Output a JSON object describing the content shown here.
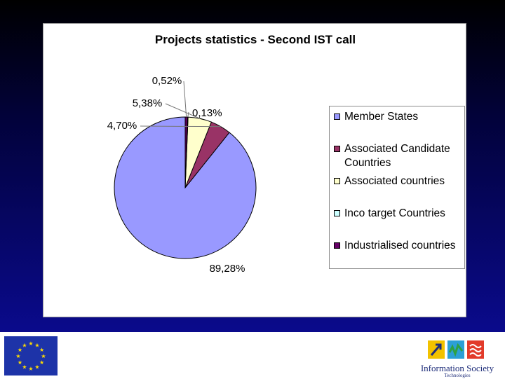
{
  "chart_data": {
    "type": "pie",
    "title": "Projects statistics - Second IST call",
    "categories": [
      "Member States",
      "Associated Candidate Countries",
      "Associated countries",
      "Inco target Countries",
      "Industrialised countries"
    ],
    "values": [
      89.28,
      4.7,
      5.38,
      0.13,
      0.52
    ],
    "data_labels": [
      "89,28%",
      "4,70%",
      "5,38%",
      "0,13%",
      "0,52%"
    ],
    "colors": [
      "#9999ff",
      "#993366",
      "#ffffcc",
      "#ccffff",
      "#660066"
    ],
    "legend": "right",
    "start_angle_deg": 0,
    "direction": "counterclockwise"
  },
  "footer": {
    "eu_flag": "eu-flag-logo",
    "logo": {
      "name": "Information Society",
      "sub": "Technologies"
    }
  }
}
